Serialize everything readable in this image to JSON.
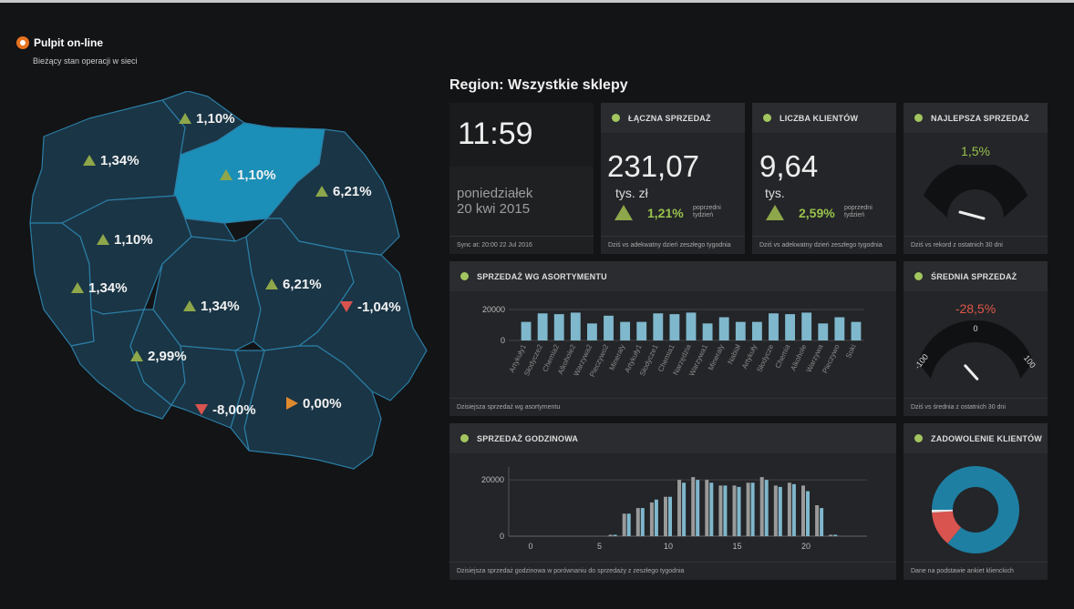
{
  "brand": {
    "title": "Pulpit on-line",
    "subtitle": "Bieżący stan operacji w sieci"
  },
  "region_title": "Region: Wszystkie sklepy",
  "map": {
    "highlight_color": "#1b8fb7",
    "region_color": "#1a3545",
    "border_color": "#2b7ea6",
    "labels": [
      {
        "value": "1,10%",
        "dir": "up"
      },
      {
        "value": "1,34%",
        "dir": "up"
      },
      {
        "value": "1,10%",
        "dir": "up"
      },
      {
        "value": "6,21%",
        "dir": "up"
      },
      {
        "value": "1,10%",
        "dir": "up"
      },
      {
        "value": "1,34%",
        "dir": "up"
      },
      {
        "value": "1,34%",
        "dir": "up"
      },
      {
        "value": "6,21%",
        "dir": "up"
      },
      {
        "value": "-1,04%",
        "dir": "down"
      },
      {
        "value": "2,99%",
        "dir": "up"
      },
      {
        "value": "-8,00%",
        "dir": "down"
      },
      {
        "value": "0,00%",
        "dir": "right"
      }
    ]
  },
  "clock": {
    "time": "11:59",
    "day": "poniedziałek",
    "date": "20 kwi 2015",
    "sync": "Sync at: 20:00 22 Jul 2016"
  },
  "total_sales": {
    "title": "ŁĄCZNA SPRZEDAŻ",
    "value": "231,07",
    "unit": "tys. zł",
    "change": "1,21%",
    "note1": "poprzedni",
    "note2": "tydzień",
    "footer": "Dziś vs adekwatny dzień zeszłego tygodnia"
  },
  "clients": {
    "title": "LICZBA KLIENTÓW",
    "value": "9,64",
    "unit": "tys.",
    "change": "2,59%",
    "note1": "poprzedni",
    "note2": "tydzień",
    "footer": "Dziś vs adekwatny dzień zeszłego tygodnia"
  },
  "best_sale": {
    "title": "NAJLEPSZA SPRZEDAŻ",
    "value": "1,5%",
    "level": 0.515,
    "footer": "Dziś vs rekord z ostatnich 30 dni"
  },
  "assortment": {
    "title": "SPRZEDAŻ WG ASORTYMENTU",
    "footer": "Dzisiejsza sprzedaż wg asortymentu"
  },
  "avg_sale": {
    "title": "ŚREDNIA SPRZEDAŻ",
    "value": "-28,5%",
    "scale_min": "-100",
    "scale_mid": "0",
    "scale_max": "100",
    "level": -28.5,
    "footer": "Dziś vs średnia z ostatnich 30 dni"
  },
  "hourly": {
    "title": "SPRZEDAŻ GODZINOWA",
    "footer": "Dzisiejsza sprzedaż godzinowa w porównaniu do sprzedaży z zeszłego tygodnia"
  },
  "satisfaction": {
    "title": "ZADOWOLENIE KLIENTÓW",
    "footer": "Dane na podstawie ankiet klienckich",
    "colors": [
      "#1e7fa3",
      "#d9534f",
      "#e8e8e8"
    ]
  },
  "chart_data": [
    {
      "type": "bar",
      "categories": [
        "Artykuły1",
        "Słodycze2",
        "Chemia2",
        "Alkohole2",
        "Warzywa2",
        "Pieczywo2",
        "Mineraly",
        "Artykuły1",
        "Słodycze1",
        "Chemia1",
        "Narzędzia",
        "Warzywa1",
        "Mineraly",
        "Nabiał",
        "Artykuły",
        "Słodycze",
        "Chemia",
        "Alkohole",
        "Warzywa",
        "Pieczywo",
        "Soki"
      ],
      "values": [
        12000,
        17500,
        17000,
        18000,
        11000,
        16000,
        12000,
        12000,
        17500,
        17000,
        18000,
        11000,
        15000,
        12000,
        12000,
        17500,
        17000,
        18000,
        11000,
        15000,
        12000
      ],
      "ylim": [
        0,
        20000
      ],
      "yticks": [
        "20000",
        "0"
      ],
      "color": "#7fb7cc"
    },
    {
      "type": "bar",
      "x": [
        0,
        1,
        2,
        3,
        4,
        5,
        6,
        7,
        8,
        9,
        10,
        11,
        12,
        13,
        14,
        15,
        16,
        17,
        18,
        19,
        20,
        21,
        22,
        23
      ],
      "series": [
        {
          "values": [
            0,
            0,
            0,
            0,
            0,
            0,
            500,
            8000,
            10000,
            12000,
            14000,
            20000,
            21000,
            20000,
            18000,
            18000,
            19000,
            21000,
            18000,
            19000,
            18000,
            11000,
            500,
            0
          ],
          "color": "#9a9a9a"
        },
        {
          "values": [
            0,
            0,
            0,
            0,
            0,
            0,
            500,
            8000,
            10000,
            13000,
            14000,
            19000,
            20000,
            19000,
            18000,
            17500,
            19000,
            20000,
            17500,
            18500,
            16000,
            10000,
            500,
            0
          ],
          "color": "#7fb7cc"
        }
      ],
      "ylim": [
        0,
        22000
      ],
      "yticks": [
        "20000",
        "0"
      ],
      "xticks": [
        "0",
        "5",
        "10",
        "15",
        "20"
      ]
    },
    {
      "type": "pie",
      "categories": [
        "",
        "",
        ""
      ],
      "values": [
        86,
        13,
        1
      ]
    }
  ]
}
